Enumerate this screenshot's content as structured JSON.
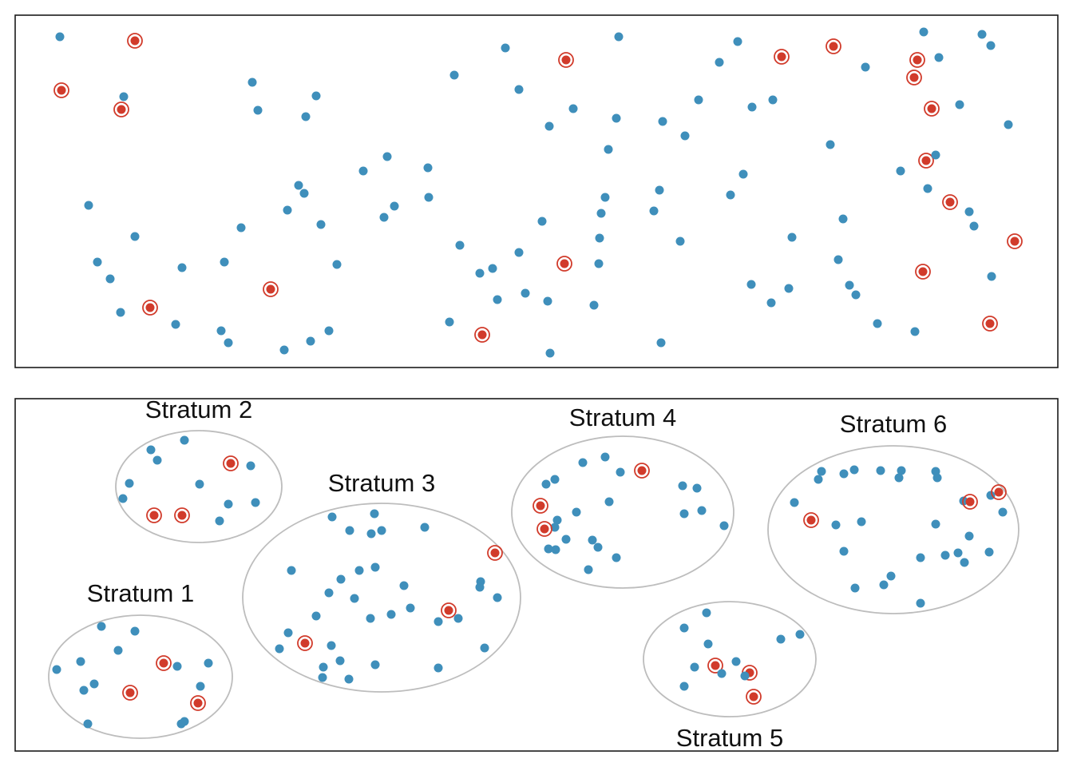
{
  "colors": {
    "population_point": "#3f8fbb",
    "sampled_point": "#d13b2b",
    "sample_ring": "#d13b2b",
    "stratum_outline": "#bdbdbd",
    "frame": "#1a1a1a"
  },
  "top_panel": {
    "points": [
      [
        75,
        46,
        0
      ],
      [
        169,
        51,
        1
      ],
      [
        77,
        113,
        1
      ],
      [
        155,
        121,
        0
      ],
      [
        152,
        137,
        1
      ],
      [
        316,
        103,
        0
      ],
      [
        323,
        138,
        0
      ],
      [
        383,
        146,
        0
      ],
      [
        396,
        120,
        0
      ],
      [
        569,
        94,
        0
      ],
      [
        633,
        60,
        0
      ],
      [
        650,
        112,
        0
      ],
      [
        709,
        75,
        1
      ],
      [
        775,
        46,
        0
      ],
      [
        688,
        158,
        0
      ],
      [
        718,
        136,
        0
      ],
      [
        772,
        148,
        0
      ],
      [
        830,
        152,
        0
      ],
      [
        858,
        170,
        0
      ],
      [
        875,
        125,
        0
      ],
      [
        901,
        78,
        0
      ],
      [
        924,
        52,
        0
      ],
      [
        942,
        134,
        0
      ],
      [
        968,
        125,
        0
      ],
      [
        979,
        71,
        1
      ],
      [
        1044,
        58,
        1
      ],
      [
        1084,
        84,
        0
      ],
      [
        1157,
        40,
        0
      ],
      [
        1149,
        75,
        1
      ],
      [
        1176,
        72,
        0
      ],
      [
        1145,
        97,
        1
      ],
      [
        1230,
        43,
        0
      ],
      [
        1241,
        57,
        0
      ],
      [
        1167,
        136,
        1
      ],
      [
        1202,
        131,
        0
      ],
      [
        1263,
        156,
        0
      ],
      [
        762,
        187,
        0
      ],
      [
        1040,
        181,
        0
      ],
      [
        1160,
        201,
        1
      ],
      [
        1172,
        194,
        0
      ],
      [
        1128,
        214,
        0
      ],
      [
        1162,
        236,
        0
      ],
      [
        1190,
        253,
        1
      ],
      [
        1214,
        265,
        0
      ],
      [
        1220,
        283,
        0
      ],
      [
        1271,
        302,
        1
      ],
      [
        111,
        257,
        0
      ],
      [
        169,
        296,
        0
      ],
      [
        122,
        328,
        0
      ],
      [
        138,
        349,
        0
      ],
      [
        151,
        391,
        0
      ],
      [
        188,
        385,
        1
      ],
      [
        220,
        406,
        0
      ],
      [
        228,
        335,
        0
      ],
      [
        281,
        328,
        0
      ],
      [
        302,
        285,
        0
      ],
      [
        339,
        362,
        1
      ],
      [
        277,
        414,
        0
      ],
      [
        286,
        429,
        0
      ],
      [
        356,
        438,
        0
      ],
      [
        389,
        427,
        0
      ],
      [
        412,
        414,
        0
      ],
      [
        360,
        263,
        0
      ],
      [
        374,
        232,
        0
      ],
      [
        381,
        242,
        0
      ],
      [
        402,
        281,
        0
      ],
      [
        422,
        331,
        0
      ],
      [
        455,
        214,
        0
      ],
      [
        485,
        196,
        0
      ],
      [
        481,
        272,
        0
      ],
      [
        494,
        258,
        0
      ],
      [
        536,
        210,
        0
      ],
      [
        537,
        247,
        0
      ],
      [
        576,
        307,
        0
      ],
      [
        601,
        342,
        0
      ],
      [
        617,
        336,
        0
      ],
      [
        623,
        375,
        0
      ],
      [
        604,
        419,
        1
      ],
      [
        563,
        403,
        0
      ],
      [
        650,
        316,
        0
      ],
      [
        658,
        367,
        0
      ],
      [
        686,
        377,
        0
      ],
      [
        679,
        277,
        0
      ],
      [
        707,
        330,
        1
      ],
      [
        689,
        442,
        0
      ],
      [
        744,
        382,
        0
      ],
      [
        750,
        330,
        0
      ],
      [
        751,
        298,
        0
      ],
      [
        753,
        267,
        0
      ],
      [
        758,
        247,
        0
      ],
      [
        826,
        238,
        0
      ],
      [
        819,
        264,
        0
      ],
      [
        852,
        302,
        0
      ],
      [
        828,
        429,
        0
      ],
      [
        915,
        244,
        0
      ],
      [
        931,
        218,
        0
      ],
      [
        941,
        356,
        0
      ],
      [
        966,
        379,
        0
      ],
      [
        988,
        361,
        0
      ],
      [
        992,
        297,
        0
      ],
      [
        1056,
        274,
        0
      ],
      [
        1050,
        325,
        0
      ],
      [
        1064,
        357,
        0
      ],
      [
        1072,
        369,
        0
      ],
      [
        1099,
        405,
        0
      ],
      [
        1146,
        415,
        0
      ],
      [
        1156,
        340,
        1
      ],
      [
        1242,
        346,
        0
      ],
      [
        1240,
        405,
        1
      ]
    ]
  },
  "bottom_panel": {
    "strata": [
      {
        "label": "Stratum 1",
        "points": [
          [
            71,
            838,
            0
          ],
          [
            101,
            828,
            0
          ],
          [
            105,
            864,
            0
          ],
          [
            118,
            856,
            0
          ],
          [
            110,
            906,
            0
          ],
          [
            127,
            784,
            0
          ],
          [
            148,
            814,
            0
          ],
          [
            169,
            790,
            0
          ],
          [
            163,
            867,
            1
          ],
          [
            205,
            830,
            1
          ],
          [
            222,
            834,
            0
          ],
          [
            261,
            830,
            0
          ],
          [
            251,
            859,
            0
          ],
          [
            248,
            880,
            1
          ],
          [
            231,
            903,
            0
          ],
          [
            227,
            906,
            0
          ]
        ]
      },
      {
        "label": "Stratum 2",
        "points": [
          [
            189,
            563,
            0
          ],
          [
            197,
            576,
            0
          ],
          [
            231,
            551,
            0
          ],
          [
            289,
            580,
            1
          ],
          [
            314,
            583,
            0
          ],
          [
            162,
            605,
            0
          ],
          [
            154,
            624,
            0
          ],
          [
            193,
            645,
            1
          ],
          [
            228,
            645,
            1
          ],
          [
            250,
            606,
            0
          ],
          [
            286,
            631,
            0
          ],
          [
            320,
            629,
            0
          ],
          [
            275,
            652,
            0
          ]
        ]
      },
      {
        "label": "Stratum 3",
        "points": [
          [
            416,
            647,
            0
          ],
          [
            438,
            664,
            0
          ],
          [
            465,
            668,
            0
          ],
          [
            469,
            643,
            0
          ],
          [
            478,
            664,
            0
          ],
          [
            532,
            660,
            0
          ],
          [
            620,
            692,
            1
          ],
          [
            365,
            714,
            0
          ],
          [
            412,
            742,
            0
          ],
          [
            427,
            725,
            0
          ],
          [
            450,
            714,
            0
          ],
          [
            470,
            710,
            0
          ],
          [
            444,
            749,
            0
          ],
          [
            396,
            771,
            0
          ],
          [
            464,
            774,
            0
          ],
          [
            490,
            769,
            0
          ],
          [
            506,
            733,
            0
          ],
          [
            514,
            761,
            0
          ],
          [
            562,
            764,
            1
          ],
          [
            549,
            778,
            0
          ],
          [
            574,
            774,
            0
          ],
          [
            602,
            728,
            0
          ],
          [
            601,
            735,
            0
          ],
          [
            623,
            748,
            0
          ],
          [
            607,
            811,
            0
          ],
          [
            549,
            836,
            0
          ],
          [
            470,
            832,
            0
          ],
          [
            437,
            850,
            0
          ],
          [
            426,
            827,
            0
          ],
          [
            405,
            835,
            0
          ],
          [
            404,
            848,
            0
          ],
          [
            415,
            808,
            0
          ],
          [
            382,
            805,
            1
          ],
          [
            361,
            792,
            0
          ],
          [
            350,
            812,
            0
          ]
        ]
      },
      {
        "label": "Stratum 4",
        "points": [
          [
            730,
            579,
            0
          ],
          [
            758,
            572,
            0
          ],
          [
            777,
            591,
            0
          ],
          [
            804,
            589,
            1
          ],
          [
            855,
            608,
            0
          ],
          [
            873,
            611,
            0
          ],
          [
            857,
            643,
            0
          ],
          [
            879,
            639,
            0
          ],
          [
            907,
            658,
            0
          ],
          [
            695,
            600,
            0
          ],
          [
            684,
            606,
            0
          ],
          [
            763,
            628,
            0
          ],
          [
            722,
            641,
            0
          ],
          [
            677,
            633,
            1
          ],
          [
            698,
            651,
            0
          ],
          [
            695,
            660,
            0
          ],
          [
            682,
            662,
            1
          ],
          [
            709,
            675,
            0
          ],
          [
            742,
            676,
            0
          ],
          [
            749,
            685,
            0
          ],
          [
            772,
            698,
            0
          ],
          [
            737,
            713,
            0
          ],
          [
            687,
            687,
            0
          ],
          [
            696,
            688,
            0
          ]
        ]
      },
      {
        "label": "Stratum 5",
        "points": [
          [
            885,
            767,
            0
          ],
          [
            857,
            786,
            0
          ],
          [
            887,
            806,
            0
          ],
          [
            870,
            835,
            0
          ],
          [
            896,
            833,
            1
          ],
          [
            904,
            843,
            0
          ],
          [
            922,
            828,
            0
          ],
          [
            939,
            842,
            1
          ],
          [
            933,
            846,
            0
          ],
          [
            944,
            872,
            1
          ],
          [
            857,
            859,
            0
          ],
          [
            978,
            800,
            0
          ],
          [
            1002,
            794,
            0
          ]
        ]
      },
      {
        "label": "Stratum 6",
        "points": [
          [
            1029,
            590,
            0
          ],
          [
            1025,
            600,
            0
          ],
          [
            1057,
            593,
            0
          ],
          [
            1070,
            588,
            0
          ],
          [
            1103,
            589,
            0
          ],
          [
            1129,
            589,
            0
          ],
          [
            1126,
            598,
            0
          ],
          [
            1172,
            590,
            0
          ],
          [
            1174,
            598,
            0
          ],
          [
            1207,
            627,
            0
          ],
          [
            1215,
            628,
            1
          ],
          [
            1241,
            620,
            0
          ],
          [
            1251,
            616,
            1
          ],
          [
            1256,
            641,
            0
          ],
          [
            995,
            629,
            0
          ],
          [
            1016,
            651,
            1
          ],
          [
            1047,
            657,
            0
          ],
          [
            1079,
            653,
            0
          ],
          [
            1172,
            656,
            0
          ],
          [
            1214,
            671,
            0
          ],
          [
            1057,
            690,
            0
          ],
          [
            1153,
            698,
            0
          ],
          [
            1184,
            695,
            0
          ],
          [
            1200,
            692,
            0
          ],
          [
            1208,
            704,
            0
          ],
          [
            1239,
            691,
            0
          ],
          [
            1116,
            721,
            0
          ],
          [
            1107,
            732,
            0
          ],
          [
            1071,
            736,
            0
          ],
          [
            1153,
            755,
            0
          ]
        ]
      }
    ]
  }
}
